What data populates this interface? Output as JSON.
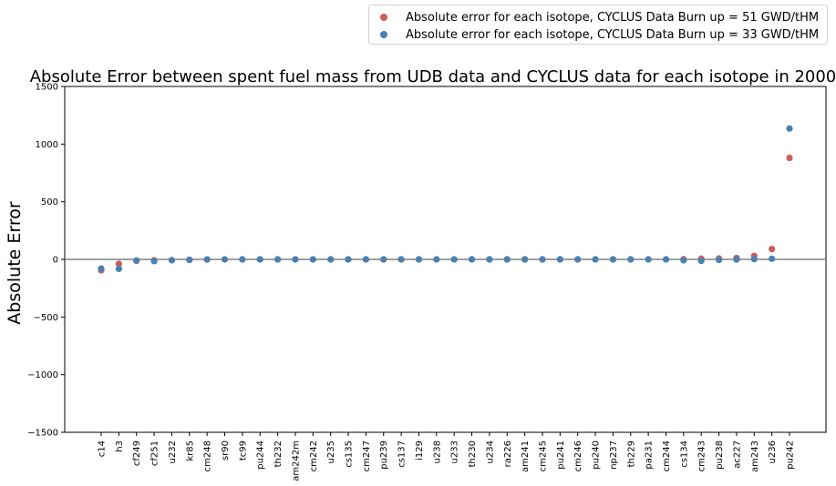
{
  "chart_data": {
    "type": "scatter",
    "title": "Absolute Error between spent fuel mass from UDB data and CYCLUS data for each isotope in 2000",
    "xlabel": "",
    "ylabel": "Absolute Error",
    "ylim": [
      -1500,
      1500
    ],
    "yticks": [
      -1500,
      -1000,
      -500,
      0,
      500,
      1000,
      1500
    ],
    "ytick_labels": [
      "−1500",
      "−1000",
      "−500",
      "0",
      "500",
      "1000",
      "1500"
    ],
    "grid": false,
    "legend_position": "upper-right-outside",
    "zero_line": true,
    "categories": [
      "c14",
      "h3",
      "cf249",
      "cf251",
      "u232",
      "kr85",
      "cm248",
      "sr90",
      "tc99",
      "pu244",
      "th232",
      "am242m",
      "cm242",
      "u235",
      "cs135",
      "cm247",
      "pu239",
      "cs137",
      "i129",
      "u238",
      "u233",
      "th230",
      "u234",
      "ra226",
      "am241",
      "cm245",
      "pu241",
      "cm246",
      "pu240",
      "np237",
      "th229",
      "pa231",
      "cm244",
      "cs134",
      "cm243",
      "pu238",
      "ac227",
      "am243",
      "u236",
      "pu242"
    ],
    "series": [
      {
        "name": "Absolute error for each isotope, CYCLUS Data Burn up = 51 GWD/tHM",
        "color": "#cd5c5c",
        "values": [
          -95,
          -38,
          -12,
          -8,
          -6,
          -3,
          -1,
          0,
          0,
          0,
          0,
          0,
          0,
          0,
          0,
          0,
          0,
          0,
          0,
          0,
          0,
          0,
          0,
          0,
          0,
          0,
          0,
          0,
          0,
          0,
          0,
          0,
          0,
          2,
          6,
          8,
          12,
          30,
          90,
          880
        ]
      },
      {
        "name": "Absolute error for each isotope, CYCLUS Data Burn up = 33 GWD/tHM",
        "color": "#4682b4",
        "values": [
          -80,
          -82,
          -10,
          -15,
          -8,
          -5,
          -1,
          0,
          0,
          0,
          0,
          0,
          0,
          0,
          0,
          0,
          0,
          0,
          0,
          0,
          0,
          0,
          0,
          0,
          0,
          0,
          0,
          0,
          0,
          0,
          0,
          0,
          0,
          -8,
          -12,
          -5,
          -2,
          2,
          5,
          1135
        ]
      }
    ]
  }
}
